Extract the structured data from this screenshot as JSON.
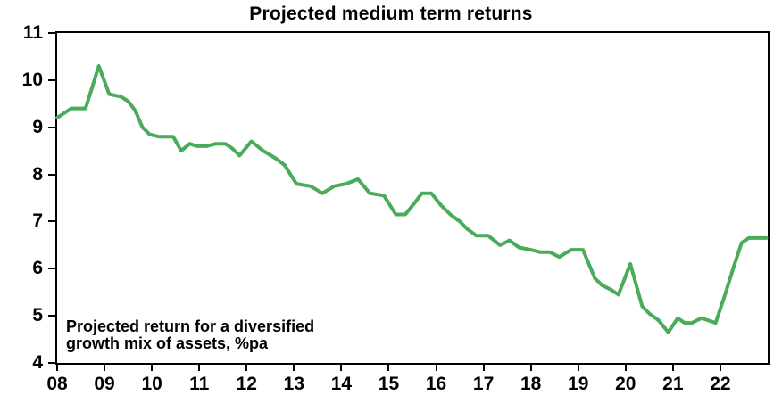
{
  "title": "Projected medium term returns",
  "annotation": {
    "line1": "Projected return for a diversified",
    "line2": "growth mix of assets, %pa"
  },
  "chart_data": {
    "type": "line",
    "title": "Projected medium term returns",
    "xlabel": "",
    "ylabel": "",
    "grid": false,
    "legend_position": "none",
    "xlim": [
      2008,
      2023.0
    ],
    "ylim": [
      4,
      11
    ],
    "y_ticks": [
      4,
      5,
      6,
      7,
      8,
      9,
      10,
      11
    ],
    "x_ticks": [
      {
        "label": "08",
        "year": 2008
      },
      {
        "label": "09",
        "year": 2009
      },
      {
        "label": "10",
        "year": 2010
      },
      {
        "label": "11",
        "year": 2011
      },
      {
        "label": "12",
        "year": 2012
      },
      {
        "label": "13",
        "year": 2013
      },
      {
        "label": "14",
        "year": 2014
      },
      {
        "label": "15",
        "year": 2015
      },
      {
        "label": "16",
        "year": 2016
      },
      {
        "label": "17",
        "year": 2017
      },
      {
        "label": "18",
        "year": 2018
      },
      {
        "label": "19",
        "year": 2019
      },
      {
        "label": "20",
        "year": 2020
      },
      {
        "label": "21",
        "year": 2021
      },
      {
        "label": "22",
        "year": 2022
      }
    ],
    "series": [
      {
        "name": "Projected return for a diversified growth mix of assets, %pa",
        "color": "#4aab5b",
        "line_width": 4,
        "points": [
          [
            2008.0,
            9.2
          ],
          [
            2008.3,
            9.4
          ],
          [
            2008.6,
            9.4
          ],
          [
            2008.88,
            10.3
          ],
          [
            2009.1,
            9.7
          ],
          [
            2009.35,
            9.65
          ],
          [
            2009.5,
            9.55
          ],
          [
            2009.65,
            9.35
          ],
          [
            2009.8,
            9.0
          ],
          [
            2009.95,
            8.85
          ],
          [
            2010.15,
            8.8
          ],
          [
            2010.35,
            8.8
          ],
          [
            2010.45,
            8.8
          ],
          [
            2010.62,
            8.5
          ],
          [
            2010.8,
            8.65
          ],
          [
            2010.95,
            8.6
          ],
          [
            2011.15,
            8.6
          ],
          [
            2011.35,
            8.65
          ],
          [
            2011.55,
            8.65
          ],
          [
            2011.7,
            8.55
          ],
          [
            2011.85,
            8.4
          ],
          [
            2012.1,
            8.7
          ],
          [
            2012.35,
            8.5
          ],
          [
            2012.6,
            8.35
          ],
          [
            2012.8,
            8.2
          ],
          [
            2013.05,
            7.8
          ],
          [
            2013.35,
            7.75
          ],
          [
            2013.6,
            7.6
          ],
          [
            2013.85,
            7.75
          ],
          [
            2014.1,
            7.8
          ],
          [
            2014.35,
            7.9
          ],
          [
            2014.6,
            7.6
          ],
          [
            2014.9,
            7.55
          ],
          [
            2015.15,
            7.15
          ],
          [
            2015.35,
            7.15
          ],
          [
            2015.55,
            7.4
          ],
          [
            2015.7,
            7.6
          ],
          [
            2015.9,
            7.6
          ],
          [
            2016.1,
            7.35
          ],
          [
            2016.3,
            7.15
          ],
          [
            2016.5,
            7.0
          ],
          [
            2016.65,
            6.85
          ],
          [
            2016.85,
            6.7
          ],
          [
            2017.1,
            6.7
          ],
          [
            2017.35,
            6.5
          ],
          [
            2017.55,
            6.6
          ],
          [
            2017.75,
            6.45
          ],
          [
            2018.0,
            6.4
          ],
          [
            2018.2,
            6.35
          ],
          [
            2018.4,
            6.35
          ],
          [
            2018.6,
            6.25
          ],
          [
            2018.85,
            6.4
          ],
          [
            2019.1,
            6.4
          ],
          [
            2019.35,
            5.8
          ],
          [
            2019.5,
            5.65
          ],
          [
            2019.7,
            5.55
          ],
          [
            2019.85,
            5.45
          ],
          [
            2020.1,
            6.1
          ],
          [
            2020.35,
            5.2
          ],
          [
            2020.5,
            5.05
          ],
          [
            2020.7,
            4.9
          ],
          [
            2020.9,
            4.65
          ],
          [
            2021.1,
            4.95
          ],
          [
            2021.25,
            4.85
          ],
          [
            2021.4,
            4.85
          ],
          [
            2021.6,
            4.95
          ],
          [
            2021.75,
            4.9
          ],
          [
            2021.9,
            4.85
          ],
          [
            2022.1,
            5.45
          ],
          [
            2022.3,
            6.1
          ],
          [
            2022.45,
            6.55
          ],
          [
            2022.6,
            6.65
          ],
          [
            2022.8,
            6.65
          ],
          [
            2022.97,
            6.65
          ]
        ]
      }
    ]
  }
}
